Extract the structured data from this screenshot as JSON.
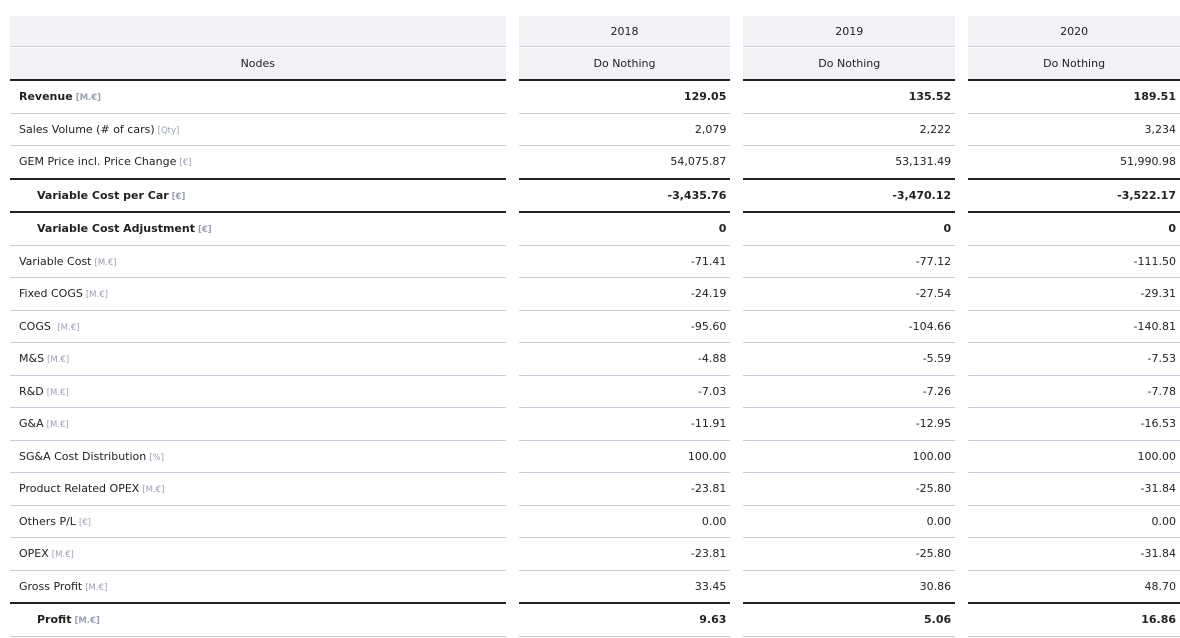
{
  "header": {
    "nodes_label": "Nodes",
    "columns": [
      {
        "year": "2018",
        "scenario": "Do Nothing"
      },
      {
        "year": "2019",
        "scenario": "Do Nothing"
      },
      {
        "year": "2020",
        "scenario": "Do Nothing"
      }
    ]
  },
  "rows": [
    {
      "name": "Revenue",
      "unit": "[M.€]",
      "bold": true,
      "indent": false,
      "values": [
        "129.05",
        "135.52",
        "189.51"
      ]
    },
    {
      "name": "Sales Volume (# of cars)",
      "unit": "[Qty]",
      "bold": false,
      "indent": false,
      "values": [
        "2,079",
        "2,222",
        "3,234"
      ]
    },
    {
      "name": "GEM Price incl. Price Change",
      "unit": "[€]",
      "bold": false,
      "indent": false,
      "values": [
        "54,075.87",
        "53,131.49",
        "51,990.98"
      ]
    },
    {
      "name": "Variable Cost per Car",
      "unit": "[€]",
      "bold": true,
      "indent": true,
      "values": [
        "-3,435.76",
        "-3,470.12",
        "-3,522.17"
      ]
    },
    {
      "name": "Variable Cost Adjustment",
      "unit": "[€]",
      "bold": true,
      "indent": true,
      "values": [
        "0",
        "0",
        "0"
      ]
    },
    {
      "name": "Variable Cost",
      "unit": "[M.€]",
      "bold": false,
      "indent": false,
      "values": [
        "-71.41",
        "-77.12",
        "-111.50"
      ]
    },
    {
      "name": "Fixed COGS",
      "unit": "[M.€]",
      "bold": false,
      "indent": false,
      "values": [
        "-24.19",
        "-27.54",
        "-29.31"
      ]
    },
    {
      "name": "COGS ",
      "unit": "[M.€]",
      "bold": false,
      "indent": false,
      "values": [
        "-95.60",
        "-104.66",
        "-140.81"
      ]
    },
    {
      "name": "M&S",
      "unit": "[M.€]",
      "bold": false,
      "indent": false,
      "values": [
        "-4.88",
        "-5.59",
        "-7.53"
      ]
    },
    {
      "name": "R&D",
      "unit": "[M.€]",
      "bold": false,
      "indent": false,
      "values": [
        "-7.03",
        "-7.26",
        "-7.78"
      ]
    },
    {
      "name": "G&A",
      "unit": "[M.€]",
      "bold": false,
      "indent": false,
      "values": [
        "-11.91",
        "-12.95",
        "-16.53"
      ]
    },
    {
      "name": "SG&A Cost Distribution",
      "unit": "[%]",
      "bold": false,
      "indent": false,
      "values": [
        "100.00",
        "100.00",
        "100.00"
      ]
    },
    {
      "name": "Product Related OPEX",
      "unit": "[M.€]",
      "bold": false,
      "indent": false,
      "values": [
        "-23.81",
        "-25.80",
        "-31.84"
      ]
    },
    {
      "name": "Others P/L",
      "unit": "[€]",
      "bold": false,
      "indent": false,
      "values": [
        "0.00",
        "0.00",
        "0.00"
      ]
    },
    {
      "name": "OPEX",
      "unit": "[M.€]",
      "bold": false,
      "indent": false,
      "values": [
        "-23.81",
        "-25.80",
        "-31.84"
      ]
    },
    {
      "name": "Gross Profit",
      "unit": "[M.€]",
      "bold": false,
      "indent": false,
      "values": [
        "33.45",
        "30.86",
        "48.70"
      ]
    },
    {
      "name": "Profit",
      "unit": "[M.€]",
      "bold": true,
      "indent": true,
      "values": [
        "9.63",
        "5.06",
        "16.86"
      ]
    }
  ]
}
